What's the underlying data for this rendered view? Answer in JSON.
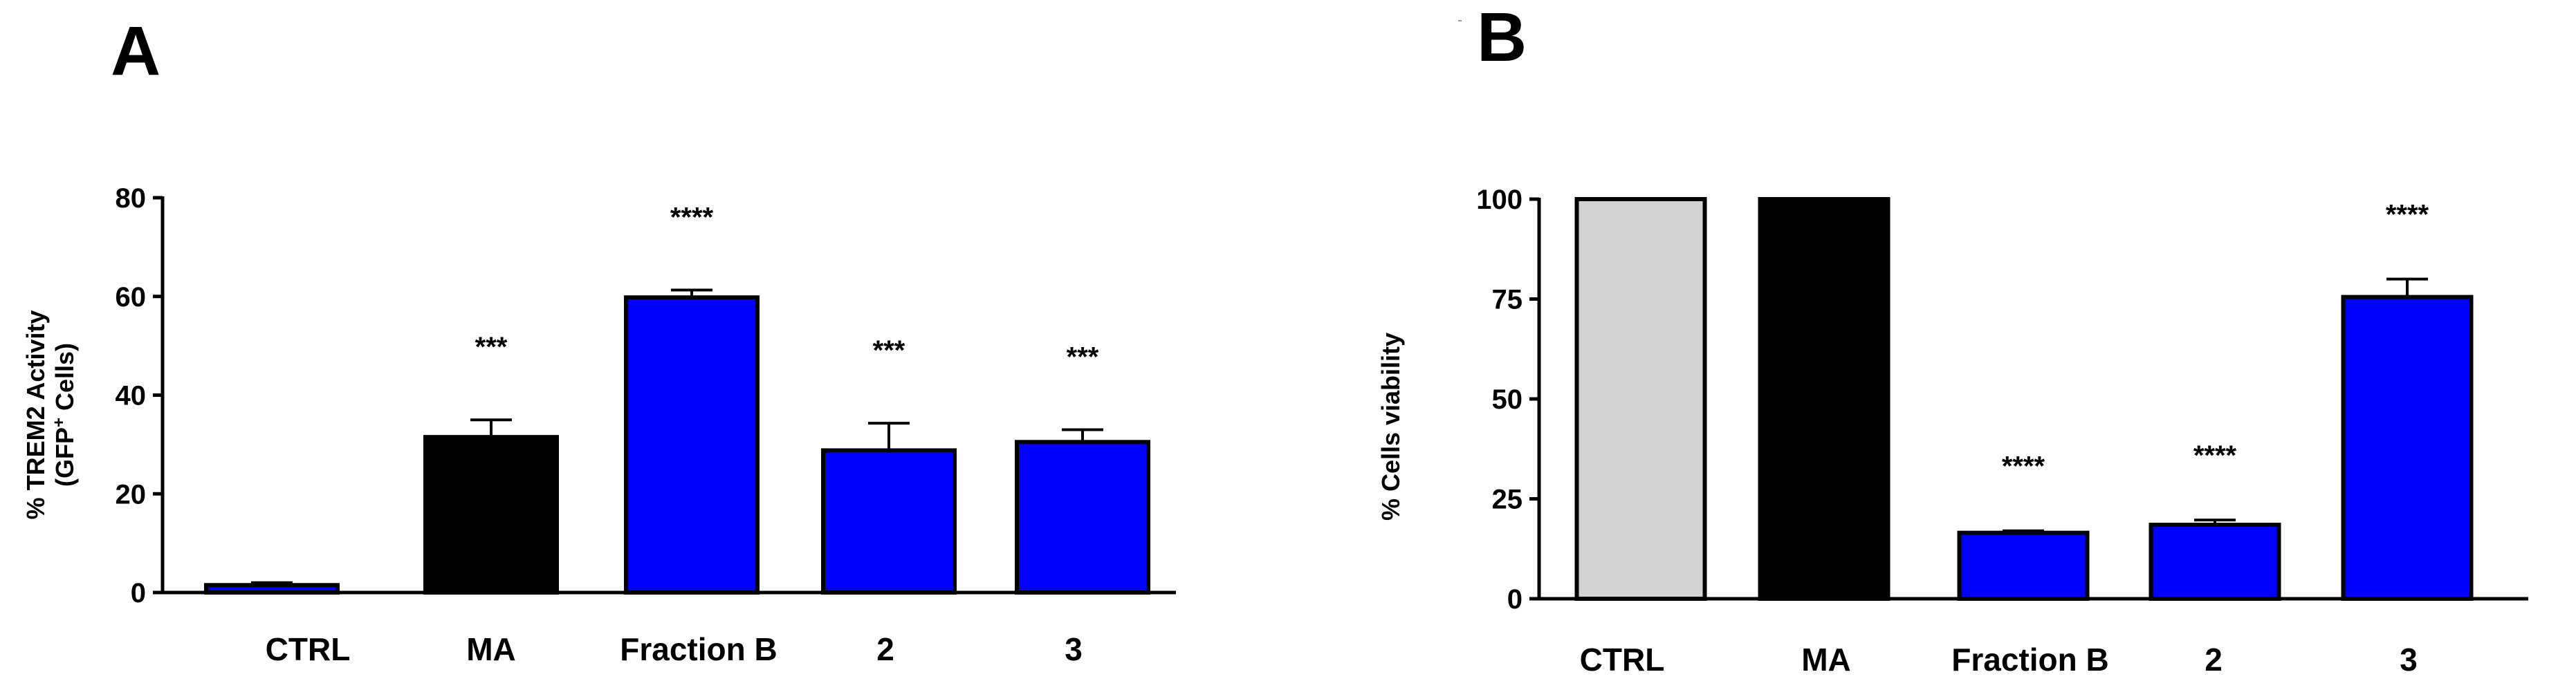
{
  "chart_data": [
    {
      "panel": "A",
      "type": "bar",
      "title": "",
      "ylabel_line1": "% TREM2 Activity",
      "ylabel_line2_pre": "(GFP",
      "ylabel_line2_sup": "+",
      "ylabel_line2_post": " Cells)",
      "xlabel": "",
      "categories": [
        "CTRL",
        "MA",
        "Fraction B",
        "2",
        "3"
      ],
      "values": [
        1.5,
        31.5,
        59.8,
        28.8,
        30.5
      ],
      "errors": [
        0.5,
        3.5,
        1.5,
        5.5,
        2.5
      ],
      "significance": [
        "",
        "***",
        "****",
        "***",
        "***"
      ],
      "bar_colors": [
        "#0000ff",
        "#000000",
        "#0000ff",
        "#0000ff",
        "#0000ff"
      ],
      "ylim": [
        0,
        80
      ],
      "yticks": [
        0,
        20,
        40,
        60,
        80
      ],
      "ytick_labels": [
        "0",
        "20",
        "40",
        "60",
        "80"
      ]
    },
    {
      "panel": "B",
      "type": "bar",
      "title": "",
      "ylabel": "% Cells viability",
      "xlabel": "",
      "categories": [
        "CTRL",
        "MA",
        "Fraction B",
        "2",
        "3"
      ],
      "values": [
        100,
        100,
        16.5,
        18.5,
        75.5
      ],
      "errors": [
        0,
        0,
        0.5,
        1.2,
        4.5
      ],
      "significance": [
        "",
        "",
        "****",
        "****",
        "****"
      ],
      "bar_colors": [
        "#d3d3d3",
        "#000000",
        "#0000ff",
        "#0000ff",
        "#0000ff"
      ],
      "ylim": [
        0,
        100
      ],
      "yticks": [
        0,
        25,
        50,
        75,
        100
      ],
      "ytick_labels": [
        "0",
        "25",
        "50",
        "75",
        "100"
      ]
    }
  ]
}
